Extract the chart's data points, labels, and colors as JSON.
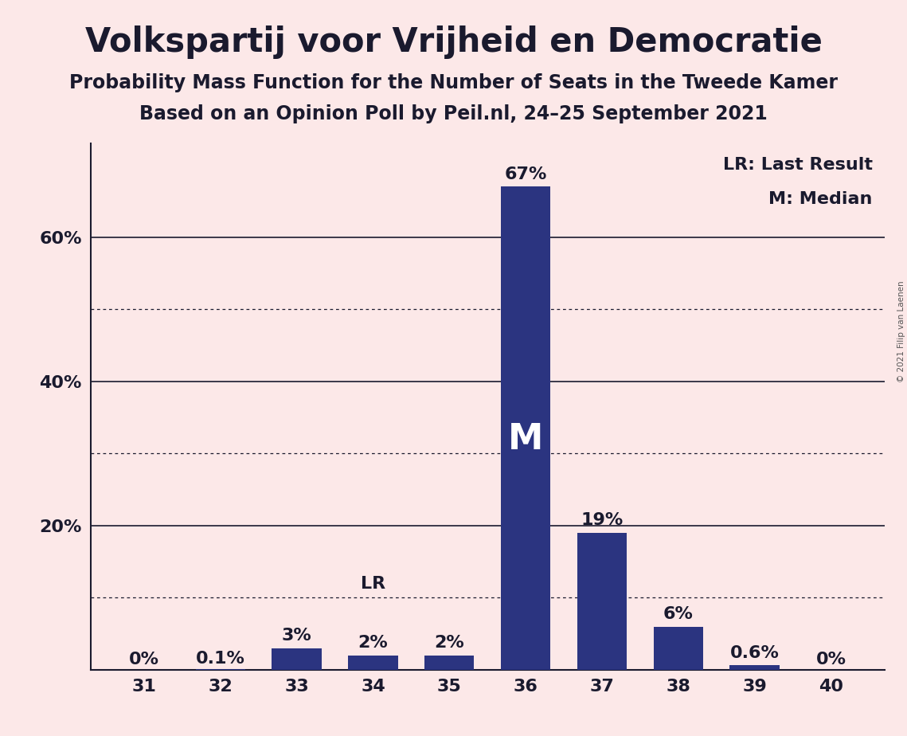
{
  "title": "Volkspartij voor Vrijheid en Democratie",
  "subtitle1": "Probability Mass Function for the Number of Seats in the Tweede Kamer",
  "subtitle2": "Based on an Opinion Poll by Peil.nl, 24–25 September 2021",
  "copyright": "© 2021 Filip van Laenen",
  "categories": [
    31,
    32,
    33,
    34,
    35,
    36,
    37,
    38,
    39,
    40
  ],
  "values": [
    0.0,
    0.1,
    3.0,
    2.0,
    2.0,
    67.0,
    19.0,
    6.0,
    0.6,
    0.0
  ],
  "labels": [
    "0%",
    "0.1%",
    "3%",
    "2%",
    "2%",
    "67%",
    "19%",
    "6%",
    "0.6%",
    "0%"
  ],
  "bar_color": "#2b3480",
  "background_color": "#fce8e8",
  "text_color": "#1a1a2e",
  "bar_width": 0.65,
  "ylim": [
    0,
    73
  ],
  "ytick_values": [
    20,
    40,
    60
  ],
  "ytick_labels": [
    "20%",
    "40%",
    "60%"
  ],
  "solid_grid_lines": [
    20,
    40,
    60
  ],
  "dotted_grid_lines": [
    10,
    30,
    50
  ],
  "median_seat": 36,
  "last_result_seat": 34,
  "legend_lr": "LR: Last Result",
  "legend_m": "M: Median",
  "median_label": "M",
  "lr_label": "LR",
  "title_fontsize": 30,
  "subtitle_fontsize": 17,
  "tick_fontsize": 16,
  "legend_fontsize": 16,
  "annotation_fontsize": 16,
  "median_fontsize": 32
}
